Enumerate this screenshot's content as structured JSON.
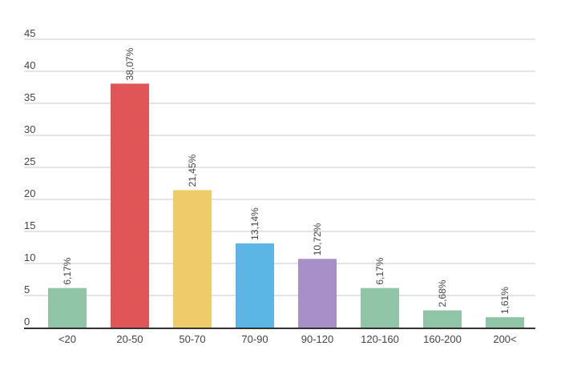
{
  "chart_data": {
    "type": "bar",
    "categories": [
      "<20",
      "20-50",
      "50-70",
      "70-90",
      "90-120",
      "120-160",
      "160-200",
      "200<"
    ],
    "values": [
      6.17,
      38.07,
      21.45,
      13.14,
      10.72,
      6.17,
      2.68,
      1.61
    ],
    "data_labels": [
      "6,17%",
      "38,07%",
      "21,45%",
      "13,14%",
      "10,72%",
      "6,17%",
      "2,68%",
      "1,61%"
    ],
    "bar_colors": [
      "#8fc4a7",
      "#e05656",
      "#efcb6a",
      "#5bb6e5",
      "#a98fc7",
      "#8fc4a7",
      "#8fc4a7",
      "#8fc4a7"
    ],
    "yticks": [
      "0",
      "5",
      "10",
      "15",
      "20",
      "25",
      "30",
      "35",
      "40",
      "45"
    ],
    "ylim": [
      0,
      45
    ],
    "grid": true,
    "title": "",
    "xlabel": "",
    "ylabel": ""
  }
}
